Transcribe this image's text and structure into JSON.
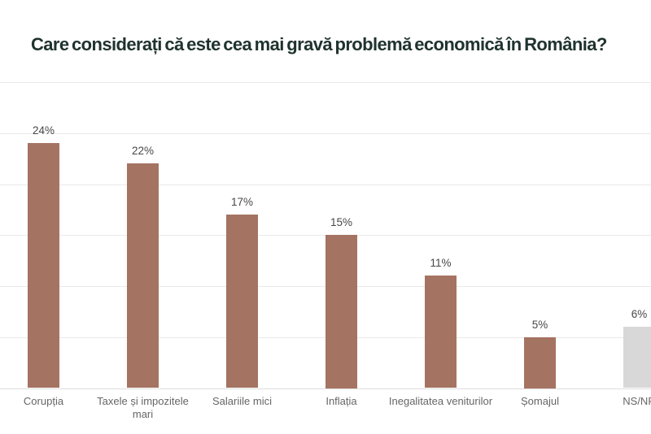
{
  "header": {
    "title": "Care considerați că este cea mai gravă problemă economică în România?"
  },
  "chart_data": {
    "type": "bar",
    "title": "Care considerați că este cea mai gravă problemă economică în România?",
    "categories": [
      "Corupția",
      "Taxele și impozitele mari",
      "Salariile mici",
      "Inflația",
      "Inegalitatea veniturilor",
      "Șomajul",
      "NS/NR"
    ],
    "values": [
      24,
      22,
      17,
      15,
      11,
      5,
      6
    ],
    "value_labels": [
      "24%",
      "22%",
      "17%",
      "15%",
      "11%",
      "5%",
      "6%"
    ],
    "bar_colors": [
      "#A57362",
      "#A57362",
      "#A57362",
      "#A57362",
      "#A57362",
      "#A57362",
      "#D8D8D8"
    ],
    "xlabel": "",
    "ylabel": "",
    "ylim": [
      0,
      30
    ],
    "gridline_step": 5,
    "grid": true,
    "legend": "none"
  },
  "style": {
    "background": "#FFFFFF",
    "title_color": "#20332E",
    "bar_color_default": "#A57362",
    "bar_color_nsnr": "#D8D8D8",
    "grid_color": "#E9E9E9",
    "baseline_color": "#DEDEDE",
    "value_label_color": "#474747",
    "category_label_color": "#666666"
  }
}
